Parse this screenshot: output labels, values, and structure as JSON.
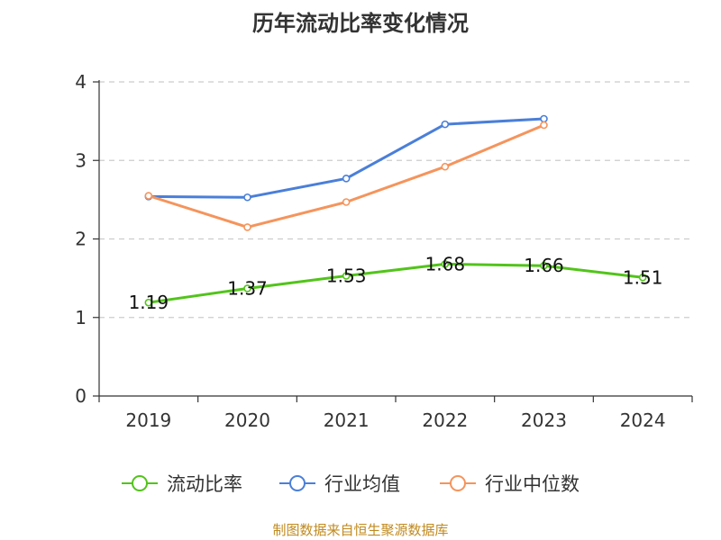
{
  "title": "历年流动比率变化情况",
  "source": "制图数据来自恒生聚源数据库",
  "chart_data": {
    "type": "line",
    "title": "历年流动比率变化情况",
    "categories": [
      "2019",
      "2020",
      "2021",
      "2022",
      "2023",
      "2024"
    ],
    "ylim": [
      0,
      4
    ],
    "yticks": [
      0,
      1,
      2,
      3,
      4
    ],
    "grid": true,
    "legend_position": "bottom",
    "series": [
      {
        "name": "流动比率",
        "color": "#52c41a",
        "values": [
          1.19,
          1.37,
          1.53,
          1.68,
          1.66,
          1.51
        ],
        "labels": [
          "1.19",
          "1.37",
          "1.53",
          "1.68",
          "1.66",
          "1.51"
        ],
        "show_labels": true
      },
      {
        "name": "行业均值",
        "color": "#4a7fd9",
        "values": [
          2.54,
          2.53,
          2.77,
          3.46,
          3.53,
          null
        ],
        "show_labels": false
      },
      {
        "name": "行业中位数",
        "color": "#f5945c",
        "values": [
          2.55,
          2.15,
          2.47,
          2.92,
          3.45,
          null
        ],
        "show_labels": false
      }
    ]
  }
}
